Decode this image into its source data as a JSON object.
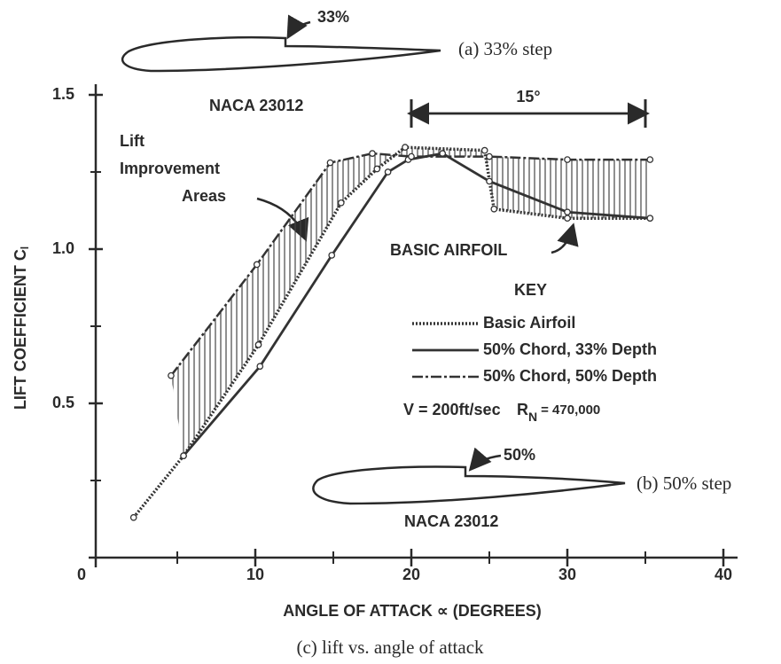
{
  "chart_data": {
    "type": "line",
    "xlabel": "ANGLE OF ATTACK ∝ (DEGREES)",
    "ylabel": "LIFT COEFFICIENT C",
    "ylabel_sub": "l",
    "caption": "(c) lift vs. angle of attack",
    "xlim": [
      0,
      40
    ],
    "ylim": [
      0,
      1.5
    ],
    "xticks": [
      0,
      10,
      20,
      30,
      40
    ],
    "xminorticks": [
      5,
      15,
      25,
      35
    ],
    "yticks": [
      0.5,
      {
        "value": 1.0,
        "label": "1.0"
      },
      1.5
    ],
    "yminorticks": [
      0.25,
      0.75,
      1.25
    ],
    "series": [
      {
        "name": "Basic Airfoil",
        "color": "#333333",
        "style": "dotted",
        "x": [
          2.2,
          5.4,
          10.2,
          15.5,
          17.8,
          19.6,
          24.7,
          25.3,
          30,
          35.3
        ],
        "values": [
          0.13,
          0.33,
          0.69,
          1.15,
          1.26,
          1.33,
          1.32,
          1.13,
          1.1,
          1.1
        ]
      },
      {
        "name": "50% Chord, 33% Depth",
        "color": "#333333",
        "style": "solid",
        "x": [
          5.4,
          10.3,
          14.9,
          18.5,
          19.8,
          22,
          25,
          30,
          35.3
        ],
        "values": [
          0.33,
          0.62,
          0.98,
          1.25,
          1.29,
          1.31,
          1.22,
          1.12,
          1.1
        ]
      },
      {
        "name": "50% Chord, 50% Depth",
        "color": "#333333",
        "style": "dashdot",
        "x": [
          4.6,
          10.1,
          14.8,
          17.5,
          20,
          25,
          30,
          35.3
        ],
        "values": [
          0.59,
          0.95,
          1.28,
          1.31,
          1.3,
          1.3,
          1.29,
          1.29
        ]
      }
    ],
    "legend_title": "KEY",
    "conditions": {
      "velocity": "V = 200ft/sec",
      "re_symbol": "R",
      "re_sub": "N",
      "re_value": "= 470,000"
    },
    "bracket": {
      "from": 20,
      "to": 35,
      "label": "15°"
    },
    "annotations": {
      "lift_improvement": [
        "Lift",
        "Improvement",
        "Areas"
      ],
      "basic_airfoil": "BASIC AIRFOIL"
    },
    "airfoil_a": {
      "depth": "33%",
      "name": "NACA 23012",
      "caption": "(a) 33% step"
    },
    "airfoil_b": {
      "depth": "50%",
      "name": "NACA 23012",
      "caption": "(b) 50% step"
    }
  }
}
